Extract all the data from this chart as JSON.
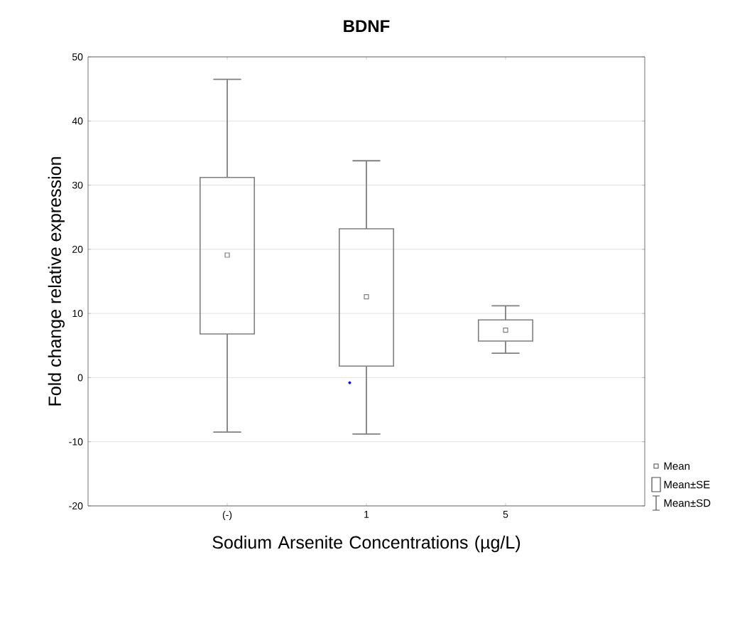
{
  "chart_data": {
    "type": "box",
    "title": "BDNF",
    "xlabel": "Sodium Arsenite Concentrations (µg/L)",
    "ylabel": "Fold change relative expression",
    "categories": [
      "(-)",
      "1",
      "5"
    ],
    "series": [
      {
        "color": "#7f7f7f",
        "boxes": [
          {
            "low": -8.5,
            "q1": 6.8,
            "q3": 31.2,
            "high": 46.5,
            "mean": 19.1
          },
          {
            "low": -8.8,
            "q1": 1.8,
            "q3": 23.2,
            "high": 33.8,
            "mean": 12.6
          },
          {
            "low": 3.8,
            "q1": 5.7,
            "q3": 9.0,
            "high": 11.2,
            "mean": 7.4
          }
        ]
      },
      {
        "type": "scatter",
        "color": "#0000ff",
        "x": [
          "1"
        ],
        "values": [
          -0.8
        ]
      }
    ],
    "ylim": [
      -20,
      50
    ],
    "yticks": [
      -20,
      -10,
      0,
      10,
      20,
      30,
      40,
      50
    ],
    "grid": "y",
    "marker": "square",
    "annotations": [
      "Mean",
      "Mean±SE",
      "Mean±SD"
    ]
  }
}
